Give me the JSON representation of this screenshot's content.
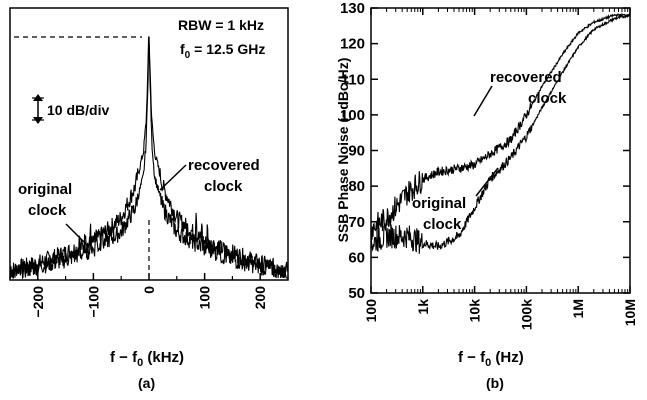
{
  "chart_data": [
    {
      "panel_label": "(a)",
      "type": "line",
      "title": "",
      "xlabel": {
        "main": "f − f",
        "sub": "0",
        "tail": " (kHz)"
      },
      "ylabel": "",
      "xlim": [
        -250,
        250
      ],
      "xticks": [
        -200,
        -100,
        0,
        100,
        200
      ],
      "xtick_labels": [
        "−200",
        "−100",
        "0",
        "100",
        "200"
      ],
      "yscale_annotation": "10 dB/div",
      "info": {
        "rbw": "RBW = 1 kHz",
        "f0_main": "f",
        "f0_sub": "0",
        "f0_tail": " = 12.5 GHz"
      },
      "series": [
        {
          "name": "recovered clock",
          "label_lines": [
            "recovered",
            "clock"
          ],
          "peak_rel_dB": 0,
          "floor_rel_dB": -67,
          "x": [
            -250,
            -200,
            -150,
            -100,
            -50,
            -25,
            -10,
            -5,
            0,
            5,
            10,
            25,
            50,
            100,
            150,
            200,
            250
          ],
          "y": [
            -67,
            -65,
            -62,
            -59,
            -52,
            -43,
            -33,
            -24,
            0,
            -24,
            -33,
            -43,
            -52,
            -59,
            -62,
            -65,
            -67
          ]
        },
        {
          "name": "original clock",
          "label_lines": [
            "original",
            "clock"
          ],
          "peak_rel_dB": -2,
          "floor_rel_dB": -68,
          "x": [
            -250,
            -200,
            -150,
            -100,
            -50,
            -25,
            -10,
            -5,
            0,
            5,
            10,
            25,
            50,
            100,
            150,
            200,
            250
          ],
          "y": [
            -68,
            -66,
            -64,
            -61,
            -56,
            -49,
            -40,
            -30,
            -2,
            -30,
            -40,
            -49,
            -56,
            -61,
            -64,
            -66,
            -68
          ],
          "spurs_kHz": [
            -125,
            -115,
            -105,
            -95,
            -85,
            85,
            95,
            105,
            115,
            125
          ]
        }
      ]
    },
    {
      "panel_label": "(b)",
      "type": "line",
      "title": "",
      "xlabel": {
        "main": "f − f",
        "sub": "0",
        "tail": " (Hz)"
      },
      "ylabel": "SSB Phase Noise (−dBc/Hz)",
      "xscale": "log",
      "xlim": [
        100,
        10000000
      ],
      "xticks": [
        100,
        1000,
        10000,
        100000,
        1000000,
        10000000
      ],
      "xtick_labels": [
        "100",
        "1k",
        "10k",
        "100k",
        "1M",
        "10M"
      ],
      "ylim": [
        130,
        50
      ],
      "yticks": [
        50,
        60,
        70,
        80,
        90,
        100,
        110,
        120,
        130
      ],
      "ytick_labels": [
        "50",
        "60",
        "70",
        "80",
        "90",
        "100",
        "110",
        "120",
        "130"
      ],
      "series": [
        {
          "name": "recovered clock",
          "label_lines": [
            "recovered",
            "clock"
          ],
          "x": [
            100,
            200,
            500,
            1000,
            2000,
            5000,
            10000,
            20000,
            50000,
            100000,
            200000,
            500000,
            1000000,
            2000000,
            5000000,
            10000000
          ],
          "y": [
            64,
            66,
            66,
            64,
            63,
            66,
            74,
            82,
            88,
            94,
            102,
            112,
            119,
            124,
            127,
            128
          ]
        },
        {
          "name": "original clock",
          "label_lines": [
            "original",
            "clock"
          ],
          "x": [
            100,
            200,
            500,
            1000,
            2000,
            5000,
            10000,
            20000,
            50000,
            100000,
            200000,
            500000,
            1000000,
            2000000,
            5000000,
            10000000
          ],
          "y": [
            68,
            71,
            78,
            82,
            84,
            85,
            86,
            89,
            93,
            100,
            108,
            117,
            123,
            126,
            128,
            128
          ]
        }
      ]
    }
  ]
}
